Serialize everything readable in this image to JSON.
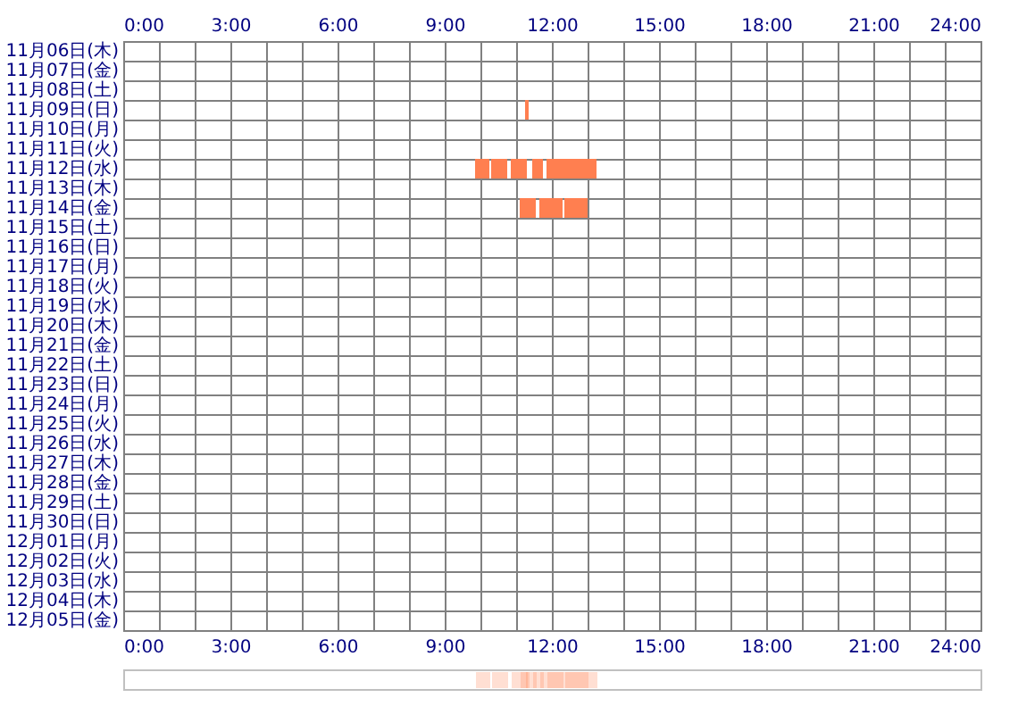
{
  "chart_data": {
    "type": "bar",
    "orientation": "horizontal",
    "categories": [
      "11月06日(木)",
      "11月07日(金)",
      "11月08日(土)",
      "11月09日(日)",
      "11月10日(月)",
      "11月11日(火)",
      "11月12日(水)",
      "11月13日(木)",
      "11月14日(金)",
      "11月15日(土)",
      "11月16日(日)",
      "11月17日(月)",
      "11月18日(火)",
      "11月19日(水)",
      "11月20日(木)",
      "11月21日(金)",
      "11月22日(土)",
      "11月23日(日)",
      "11月24日(月)",
      "11月25日(火)",
      "11月26日(水)",
      "11月27日(木)",
      "11月28日(金)",
      "11月29日(土)",
      "11月30日(日)",
      "12月01日(月)",
      "12月02日(火)",
      "12月03日(水)",
      "12月04日(木)",
      "12月05日(金)"
    ],
    "series": [
      {
        "color": "#ff7f50",
        "base": [
          null,
          null,
          null,
          11.25,
          null,
          null,
          9.85,
          null,
          11.1,
          null,
          null,
          null,
          null,
          null,
          null,
          null,
          null,
          null,
          null,
          null,
          null,
          null,
          null,
          null,
          null,
          null,
          null,
          null,
          null,
          null
        ],
        "values": [
          null,
          null,
          null,
          0.1,
          null,
          null,
          0.4,
          null,
          0.45,
          null,
          null,
          null,
          null,
          null,
          null,
          null,
          null,
          null,
          null,
          null,
          null,
          null,
          null,
          null,
          null,
          null,
          null,
          null,
          null,
          null
        ]
      },
      {
        "color": "#ff7f50",
        "base": [
          null,
          null,
          null,
          null,
          null,
          null,
          10.3,
          null,
          11.65,
          null,
          null,
          null,
          null,
          null,
          null,
          null,
          null,
          null,
          null,
          null,
          null,
          null,
          null,
          null,
          null,
          null,
          null,
          null,
          null,
          null
        ],
        "values": [
          null,
          null,
          null,
          null,
          null,
          null,
          0.45,
          null,
          0.65,
          null,
          null,
          null,
          null,
          null,
          null,
          null,
          null,
          null,
          null,
          null,
          null,
          null,
          null,
          null,
          null,
          null,
          null,
          null,
          null,
          null
        ]
      },
      {
        "color": "#ff7f50",
        "base": [
          null,
          null,
          null,
          null,
          null,
          null,
          10.85,
          null,
          12.35,
          null,
          null,
          null,
          null,
          null,
          null,
          null,
          null,
          null,
          null,
          null,
          null,
          null,
          null,
          null,
          null,
          null,
          null,
          null,
          null,
          null
        ],
        "values": [
          null,
          null,
          null,
          null,
          null,
          null,
          0.45,
          null,
          0.65,
          null,
          null,
          null,
          null,
          null,
          null,
          null,
          null,
          null,
          null,
          null,
          null,
          null,
          null,
          null,
          null,
          null,
          null,
          null,
          null,
          null
        ]
      },
      {
        "color": "#ff7f50",
        "base": [
          null,
          null,
          null,
          null,
          null,
          null,
          11.45,
          null,
          null,
          null,
          null,
          null,
          null,
          null,
          null,
          null,
          null,
          null,
          null,
          null,
          null,
          null,
          null,
          null,
          null,
          null,
          null,
          null,
          null,
          null
        ],
        "values": [
          null,
          null,
          null,
          null,
          null,
          null,
          0.3,
          null,
          null,
          null,
          null,
          null,
          null,
          null,
          null,
          null,
          null,
          null,
          null,
          null,
          null,
          null,
          null,
          null,
          null,
          null,
          null,
          null,
          null,
          null
        ]
      },
      {
        "color": "#ff7f50",
        "base": [
          null,
          null,
          null,
          null,
          null,
          null,
          11.85,
          null,
          null,
          null,
          null,
          null,
          null,
          null,
          null,
          null,
          null,
          null,
          null,
          null,
          null,
          null,
          null,
          null,
          null,
          null,
          null,
          null,
          null,
          null
        ],
        "values": [
          null,
          null,
          null,
          null,
          null,
          null,
          1.4,
          null,
          null,
          null,
          null,
          null,
          null,
          null,
          null,
          null,
          null,
          null,
          null,
          null,
          null,
          null,
          null,
          null,
          null,
          null,
          null,
          null,
          null,
          null
        ]
      }
    ],
    "xlim": [
      0,
      24
    ],
    "xticks": [
      {
        "value": 0,
        "label": "0:00"
      },
      {
        "value": 1,
        "label": null
      },
      {
        "value": 2,
        "label": null
      },
      {
        "value": 3,
        "label": "3:00"
      },
      {
        "value": 4,
        "label": null
      },
      {
        "value": 5,
        "label": null
      },
      {
        "value": 6,
        "label": "6:00"
      },
      {
        "value": 7,
        "label": null
      },
      {
        "value": 8,
        "label": null
      },
      {
        "value": 9,
        "label": "9:00"
      },
      {
        "value": 10,
        "label": null
      },
      {
        "value": 11,
        "label": null
      },
      {
        "value": 12,
        "label": "12:00"
      },
      {
        "value": 13,
        "label": null
      },
      {
        "value": 14,
        "label": null
      },
      {
        "value": 15,
        "label": "15:00"
      },
      {
        "value": 16,
        "label": null
      },
      {
        "value": 17,
        "label": null
      },
      {
        "value": 18,
        "label": "18:00"
      },
      {
        "value": 19,
        "label": null
      },
      {
        "value": 20,
        "label": null
      },
      {
        "value": 21,
        "label": "21:00"
      },
      {
        "value": 22,
        "label": null
      },
      {
        "value": 23,
        "label": null
      },
      {
        "value": 24,
        "label": "24:00"
      }
    ],
    "x2lim": [
      0,
      24
    ],
    "x2ticks": [
      {
        "value": 0,
        "label": "0:00"
      },
      {
        "value": 1,
        "label": null
      },
      {
        "value": 2,
        "label": null
      },
      {
        "value": 3,
        "label": "3:00"
      },
      {
        "value": 4,
        "label": null
      },
      {
        "value": 5,
        "label": null
      },
      {
        "value": 6,
        "label": "6:00"
      },
      {
        "value": 7,
        "label": null
      },
      {
        "value": 8,
        "label": null
      },
      {
        "value": 9,
        "label": "9:00"
      },
      {
        "value": 10,
        "label": null
      },
      {
        "value": 11,
        "label": null
      },
      {
        "value": 12,
        "label": "12:00"
      },
      {
        "value": 13,
        "label": null
      },
      {
        "value": 14,
        "label": null
      },
      {
        "value": 15,
        "label": "15:00"
      },
      {
        "value": 16,
        "label": null
      },
      {
        "value": 17,
        "label": null
      },
      {
        "value": 18,
        "label": "18:00"
      },
      {
        "value": 19,
        "label": null
      },
      {
        "value": 20,
        "label": null
      },
      {
        "value": 21,
        "label": "21:00"
      },
      {
        "value": 22,
        "label": null
      },
      {
        "value": 23,
        "label": null
      },
      {
        "value": 24,
        "label": "24:00"
      }
    ],
    "grid": true
  }
}
